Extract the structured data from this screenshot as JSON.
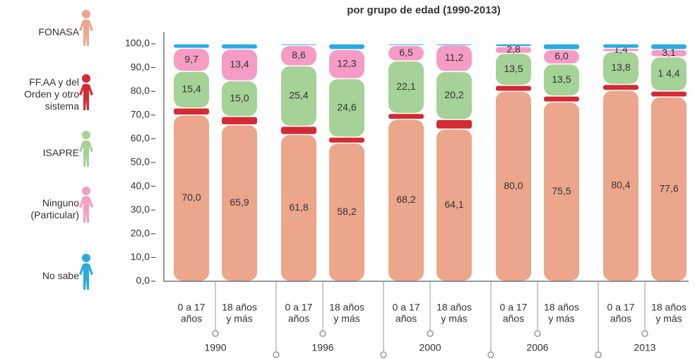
{
  "chart_data": {
    "type": "stacked_bar",
    "title": "por grupo de edad (1990-2013)",
    "categories": [
      [
        "0 a 17",
        "años"
      ],
      [
        "18 años",
        "y más"
      ],
      [
        "0 a 17",
        "años"
      ],
      [
        "18 años",
        "y más"
      ],
      [
        "0 a 17",
        "años"
      ],
      [
        "18 años",
        "y más"
      ],
      [
        "0 a 17",
        "años"
      ],
      [
        "18 años",
        "y más"
      ],
      [
        "0 a 17",
        "años"
      ],
      [
        "18 años",
        "y más"
      ]
    ],
    "groups": [
      "1990",
      "1996",
      "2000",
      "2006",
      "2013"
    ],
    "series": [
      {
        "name": "FONASA",
        "color": "#eba68c",
        "values": [
          70.0,
          65.9,
          61.8,
          58.2,
          68.2,
          64.1,
          80.0,
          75.5,
          80.4,
          77.6
        ],
        "value_labels": [
          "70,0",
          "65,9",
          "61,8",
          "58,2",
          "68,2",
          "64,1",
          "80,0",
          "75,5",
          "80,4",
          "77,6"
        ]
      },
      {
        "name": "FF.AA y del Orden y otro sistema",
        "color": "#d42a33",
        "values": [
          3.0,
          3.5,
          3.5,
          2.5,
          2.5,
          4.0,
          2.5,
          2.5,
          2.5,
          2.5
        ]
      },
      {
        "name": "ISAPRE",
        "color": "#a5d296",
        "values": [
          15.4,
          15.0,
          25.4,
          24.6,
          22.1,
          20.2,
          13.5,
          13.5,
          13.8,
          14.4
        ],
        "value_labels": [
          "15,4",
          "15,0",
          "25,4",
          "24,6",
          "22,1",
          "20,2",
          "13,5",
          "13,5",
          "13,8",
          "1 4,4"
        ]
      },
      {
        "name": "Ninguno (Particular)",
        "color": "#f49cc6",
        "values": [
          9.7,
          13.4,
          8.6,
          12.3,
          6.5,
          11.2,
          2.8,
          6.0,
          1.4,
          3.1
        ],
        "value_labels": [
          "9,7",
          "13,4",
          "8,6",
          "12,3",
          "6,5",
          "11,2",
          "2,8",
          "6,0",
          "1,4",
          "3,1"
        ]
      },
      {
        "name": "No sabe",
        "color": "#2aaae2",
        "values": [
          1.9,
          2.2,
          0.7,
          2.4,
          0.7,
          0.5,
          1.2,
          2.5,
          1.9,
          2.4
        ]
      }
    ],
    "ylim": [
      0,
      100
    ],
    "yticks": [
      {
        "value": 0,
        "label": "0,0"
      },
      {
        "value": 10,
        "label": "10,0"
      },
      {
        "value": 20,
        "label": "20,0"
      },
      {
        "value": 30,
        "label": "30,0"
      },
      {
        "value": 40,
        "label": "40,0"
      },
      {
        "value": 50,
        "label": "50,0"
      },
      {
        "value": 60,
        "label": "60,0"
      },
      {
        "value": 70,
        "label": "70,0"
      },
      {
        "value": 80,
        "label": "80,0"
      },
      {
        "value": 90,
        "label": "90,0"
      },
      {
        "value": 100,
        "label": "100,0"
      }
    ]
  }
}
